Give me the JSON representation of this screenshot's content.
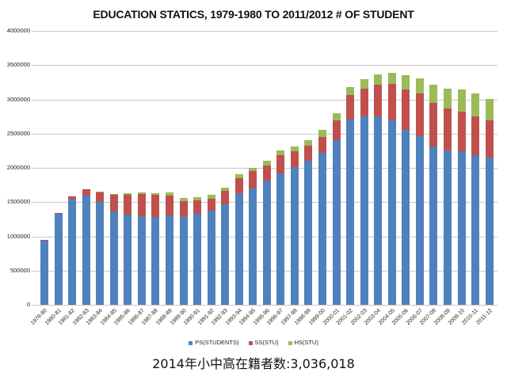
{
  "chart_data": {
    "type": "bar",
    "stacked": true,
    "title": "EDUCATION STATICS, 1979-1980 TO 2011/2012 # OF STUDENT",
    "xlabel": "",
    "ylabel": "",
    "ylim": [
      0,
      4000000
    ],
    "yticks": [
      0,
      500000,
      1000000,
      1500000,
      2000000,
      2500000,
      3000000,
      3500000,
      4000000
    ],
    "ytick_labels": [
      "0",
      "500000",
      "1000000",
      "1500000",
      "2000000",
      "2500000",
      "3000000",
      "3500000",
      "4000000"
    ],
    "grid": true,
    "legend_position": "bottom",
    "categories": [
      "1979-80",
      "1980-81",
      "1981-82",
      "1982-83",
      "1983-84",
      "1984-85",
      "1985-86",
      "1986-87",
      "1987-88",
      "1988-89",
      "1989-90",
      "1990-91",
      "1991-92",
      "1992-93",
      "1993-94",
      "1994-95",
      "1995-96",
      "1996-97",
      "1997-98",
      "1998-99",
      "1999-00",
      "2000-01",
      "2001-02",
      "2002-03",
      "2003-04",
      "2004-05",
      "2005-06",
      "2006-07",
      "2007-08",
      "2008-09",
      "2009-10",
      "2010-11",
      "2011-12"
    ],
    "series": [
      {
        "name": "PS(STUDENTS)",
        "color": "#4f81bd",
        "values": [
          940000,
          1330000,
          1540000,
          1600000,
          1500000,
          1370000,
          1320000,
          1300000,
          1280000,
          1310000,
          1280000,
          1330000,
          1380000,
          1470000,
          1630000,
          1700000,
          1810000,
          1920000,
          2010000,
          2100000,
          2220000,
          2410000,
          2710000,
          2750000,
          2750000,
          2690000,
          2560000,
          2460000,
          2310000,
          2260000,
          2240000,
          2190000,
          2150000
        ]
      },
      {
        "name": "SS(STU)",
        "color": "#c0504d",
        "values": [
          10000,
          15000,
          40000,
          90000,
          145000,
          240000,
          290000,
          320000,
          330000,
          290000,
          240000,
          200000,
          170000,
          200000,
          220000,
          250000,
          230000,
          270000,
          230000,
          220000,
          230000,
          280000,
          350000,
          410000,
          460000,
          530000,
          590000,
          630000,
          640000,
          610000,
          580000,
          560000,
          540000
        ]
      },
      {
        "name": "HS(STU)",
        "color": "#9bbb59",
        "values": [
          0,
          0,
          0,
          0,
          10000,
          10000,
          20000,
          20000,
          20000,
          40000,
          40000,
          40000,
          60000,
          40000,
          60000,
          50000,
          60000,
          60000,
          70000,
          90000,
          100000,
          110000,
          120000,
          130000,
          150000,
          170000,
          200000,
          220000,
          260000,
          290000,
          330000,
          340000,
          320000
        ]
      }
    ],
    "annotations": [
      "2014年小中高在籍者数:3,036,018"
    ]
  },
  "caption": "2014年小中高在籍者数:3,036,018"
}
